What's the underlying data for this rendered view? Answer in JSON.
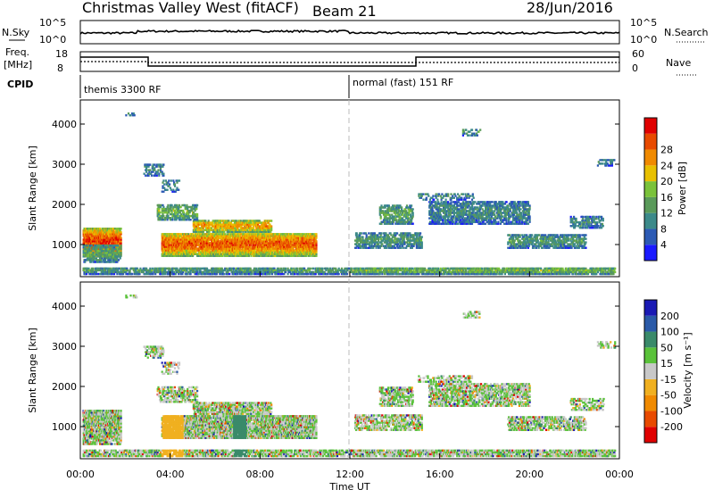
{
  "header": {
    "title": "Christmas Valley West (fitACF)",
    "beam": "Beam 21",
    "date": "28/Jun/2016"
  },
  "panels": {
    "nsky_label": "N.Sky",
    "nsky_ticks": [
      "10^5",
      "10^0"
    ],
    "nsearch_label": "N.Search",
    "nsearch_ticks": [
      "10^5",
      "10^0"
    ],
    "freq_label_1": "Freq.",
    "freq_label_2": "[MHz]",
    "freq_ticks": [
      "18",
      "8"
    ],
    "nave_label": "Nave",
    "nave_ticks": [
      "60",
      "0"
    ],
    "cpid_label": "CPID",
    "cpid_segments": [
      "themis 3300 RF",
      "normal (fast) 151 RF"
    ]
  },
  "chart_data": [
    {
      "type": "heatmap",
      "name": "power",
      "ylabel": "Slant Range [km]",
      "yticks": [
        1000,
        2000,
        3000,
        4000
      ],
      "ylim": [
        200,
        4600
      ],
      "xlim": [
        0,
        24
      ],
      "colorbar_label": "Power [dB]",
      "colorbar_ticks": [
        4,
        8,
        12,
        16,
        20,
        24,
        28
      ],
      "colorbar_colors": [
        "#1a1aff",
        "#2c5ab4",
        "#3c8a8a",
        "#5a9a5a",
        "#7ac23a",
        "#e8c000",
        "#f08a00",
        "#e84a00",
        "#e00000"
      ]
    },
    {
      "type": "heatmap",
      "name": "velocity",
      "ylabel": "Slant Range [km]",
      "yticks": [
        1000,
        2000,
        3000,
        4000
      ],
      "ylim": [
        200,
        4600
      ],
      "xlim": [
        0,
        24
      ],
      "xlabel": "Time UT",
      "xticks": [
        "00:00",
        "04:00",
        "08:00",
        "12:00",
        "16:00",
        "20:00",
        "00:00"
      ],
      "colorbar_label": "Velocity [m s⁻¹]",
      "colorbar_ticks": [
        "200",
        "100",
        "50",
        "15",
        "-15",
        "-50",
        "-100",
        "-200"
      ],
      "colorbar_colors": [
        "#1a1ab4",
        "#2a5aa8",
        "#3a8a6a",
        "#5ac23a",
        "#c8c8c8",
        "#f0b020",
        "#f08a00",
        "#e84a00",
        "#e00000"
      ]
    }
  ]
}
